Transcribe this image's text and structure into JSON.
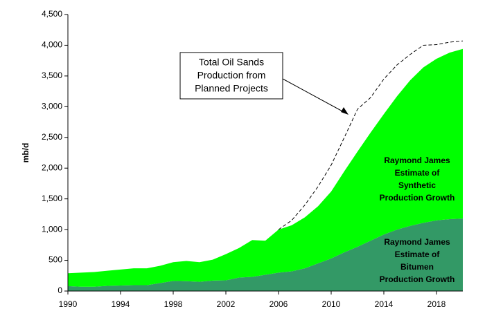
{
  "chart_data": {
    "type": "stacked-area",
    "y_label": "mb/d",
    "x": [
      1990,
      1991,
      1992,
      1993,
      1994,
      1995,
      1996,
      1997,
      1998,
      1999,
      2000,
      2001,
      2002,
      2003,
      2004,
      2005,
      2006,
      2007,
      2008,
      2009,
      2010,
      2011,
      2012,
      2013,
      2014,
      2015,
      2016,
      2017,
      2018,
      2019,
      2020
    ],
    "series": [
      {
        "label": [
          "Raymond James",
          "Estimate of",
          "Bitumen",
          "Production Growth"
        ],
        "color": "#339966",
        "values": [
          80,
          70,
          70,
          85,
          90,
          95,
          95,
          130,
          165,
          160,
          150,
          170,
          175,
          220,
          230,
          265,
          300,
          320,
          370,
          450,
          530,
          630,
          720,
          820,
          920,
          1000,
          1060,
          1110,
          1150,
          1170,
          1180
        ]
      },
      {
        "label": [
          "Raymond James",
          "Estimate of",
          "Synthetic",
          "Production Growth"
        ],
        "color": "#00ff00",
        "values": [
          210,
          230,
          240,
          245,
          260,
          275,
          275,
          280,
          305,
          330,
          320,
          340,
          425,
          480,
          600,
          555,
          700,
          750,
          830,
          930,
          1090,
          1320,
          1550,
          1760,
          1960,
          2170,
          2370,
          2530,
          2630,
          2710,
          2760
        ]
      }
    ],
    "planned": {
      "label": [
        "Total Oil Sands",
        "Production from",
        "Planned Projects"
      ],
      "color": "#000000",
      "values": [
        null,
        null,
        null,
        null,
        null,
        null,
        null,
        null,
        null,
        null,
        null,
        null,
        null,
        null,
        null,
        null,
        1000,
        1150,
        1400,
        1700,
        2050,
        2500,
        2960,
        3150,
        3450,
        3680,
        3850,
        4000,
        4010,
        4050,
        4070
      ]
    },
    "xlim": [
      1990,
      2020
    ],
    "xticks": [
      1990,
      1994,
      1998,
      2002,
      2006,
      2010,
      2014,
      2018
    ],
    "ylim": [
      0,
      4500
    ],
    "yticks": [
      0,
      500,
      {
        "value": 1000,
        "label": "1,000"
      },
      {
        "value": 1500,
        "label": "1,500"
      },
      {
        "value": 2000,
        "label": "2,000"
      },
      {
        "value": 2500,
        "label": "2,500"
      },
      {
        "value": 3000,
        "label": "3,000"
      },
      {
        "value": 3500,
        "label": "3,500"
      },
      {
        "value": 4000,
        "label": "4,000"
      },
      {
        "value": 4500,
        "label": "4,500"
      }
    ]
  }
}
